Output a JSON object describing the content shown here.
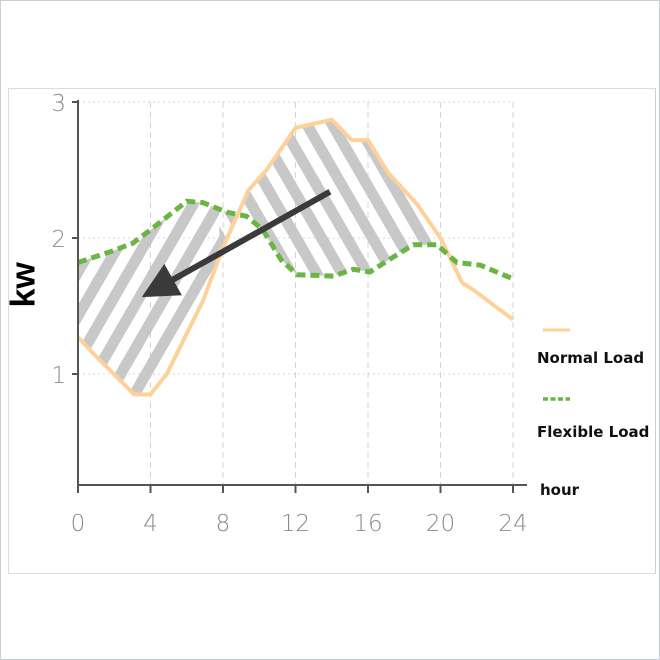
{
  "chart_data": {
    "type": "line",
    "title": "",
    "xlabel": "hour",
    "ylabel": "kw",
    "xlim": [
      0,
      24
    ],
    "ylim": [
      0.2,
      3
    ],
    "xticks": [
      "0",
      "4",
      "8",
      "12",
      "16",
      "20",
      "24"
    ],
    "yticks": [
      "1",
      "2",
      "3"
    ],
    "grid": true,
    "legend_position": "right",
    "series": [
      {
        "name": "Normal Load",
        "color": "#fdd29a",
        "style": "solid",
        "x": [
          0,
          1,
          3.1,
          4,
          4.9,
          6.9,
          8,
          9.4,
          10.4,
          12,
          14,
          15.1,
          16,
          17.1,
          18.7,
          20,
          21.2,
          21.8,
          24
        ],
        "y": [
          1.27,
          1.13,
          0.85,
          0.85,
          1.0,
          1.54,
          1.93,
          2.35,
          2.5,
          2.81,
          2.87,
          2.72,
          2.72,
          2.48,
          2.25,
          2.0,
          1.67,
          1.62,
          1.4
        ]
      },
      {
        "name": "Flexible Load",
        "color": "#6ab543",
        "style": "dashed",
        "x": [
          0,
          1.8,
          3,
          4,
          6,
          6.9,
          8.2,
          9.3,
          10.2,
          11.2,
          12.1,
          14.1,
          15.2,
          16.1,
          17.4,
          18.5,
          19.8,
          20.9,
          22.2,
          24
        ],
        "y": [
          1.82,
          1.9,
          1.96,
          2.06,
          2.27,
          2.26,
          2.19,
          2.16,
          2.06,
          1.84,
          1.73,
          1.72,
          1.77,
          1.75,
          1.86,
          1.95,
          1.95,
          1.82,
          1.8,
          1.7
        ]
      }
    ],
    "annotations": [
      {
        "type": "hatched-area",
        "between": [
          "Normal Load",
          "Flexible Load"
        ],
        "x_range": [
          0,
          20
        ]
      },
      {
        "type": "arrow",
        "from": [
          13.9,
          2.34
        ],
        "to": [
          3.9,
          1.6
        ],
        "color": "#3a3a3a"
      }
    ]
  }
}
